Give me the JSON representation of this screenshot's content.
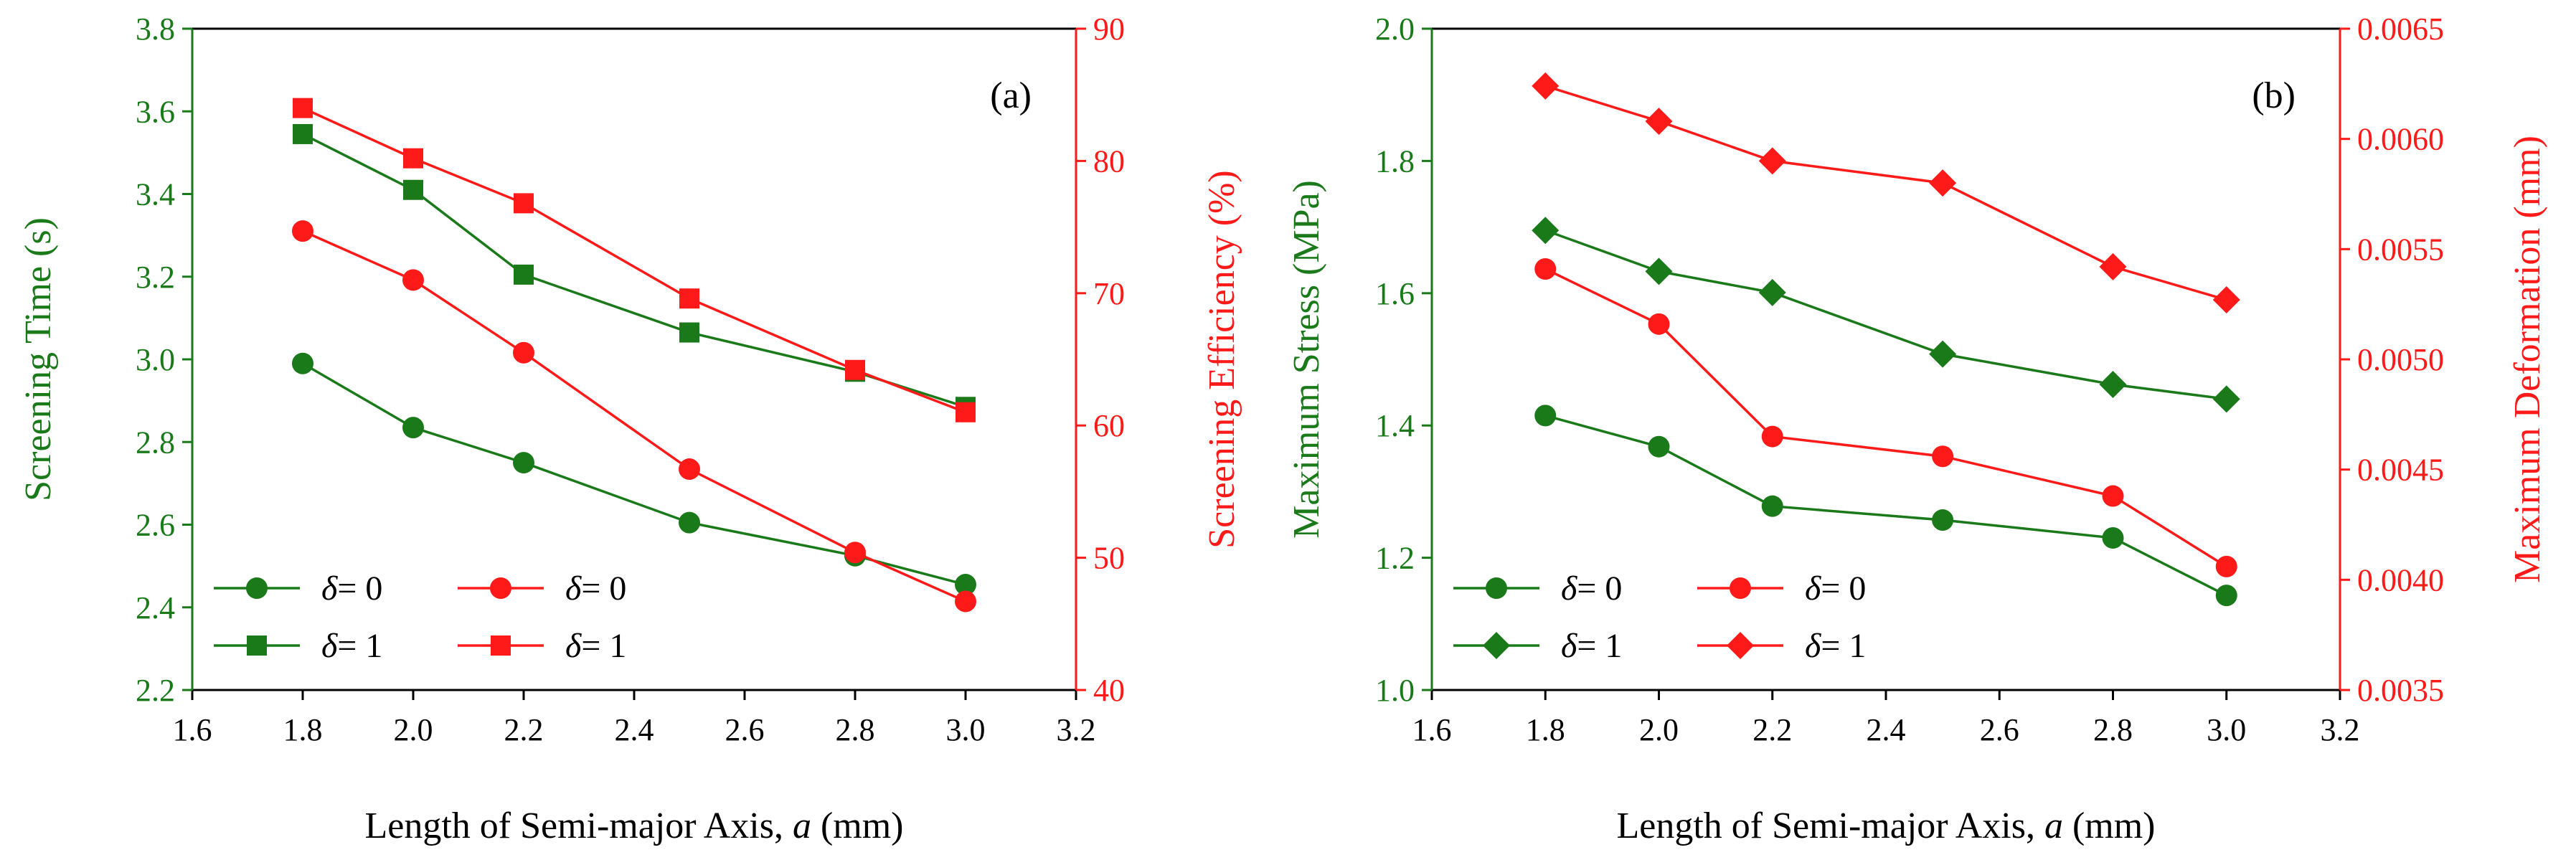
{
  "colors": {
    "green": "#1a7a1a",
    "red": "#ff1a1a",
    "axis": "#000000"
  },
  "chart_data": [
    {
      "type": "line",
      "panel_label": "(a)",
      "title": "",
      "xlabel_prefix": "Length of Semi-major Axis, ",
      "xlabel_var": "a",
      "xlabel_suffix": " (mm)",
      "xlim": [
        1.6,
        3.2
      ],
      "xticks": [
        "1.6",
        "1.8",
        "2.0",
        "2.2",
        "2.4",
        "2.6",
        "2.8",
        "3.0",
        "3.2"
      ],
      "ylabel_left": "Screening Time (s)",
      "ylim_left": [
        2.2,
        3.8
      ],
      "yticks_left": [
        "2.2",
        "2.4",
        "2.6",
        "2.8",
        "3.0",
        "3.2",
        "3.4",
        "3.6",
        "3.8"
      ],
      "ylabel_right": "Screening Efficiency (%)",
      "ylim_right": [
        40,
        90
      ],
      "yticks_right": [
        "40",
        "50",
        "60",
        "70",
        "80",
        "90"
      ],
      "x": [
        1.8,
        2.0,
        2.2,
        2.5,
        2.8,
        3.0
      ],
      "series": [
        {
          "name": "δ = 0",
          "delta_label": "δ",
          "delta_value": "= 0",
          "axis": "left",
          "color": "#1a7a1a",
          "marker": "circle",
          "values": [
            2.99,
            2.835,
            2.75,
            2.605,
            2.525,
            2.455
          ]
        },
        {
          "name": "δ = 1",
          "delta_label": "δ",
          "delta_value": "= 1",
          "axis": "left",
          "color": "#1a7a1a",
          "marker": "square",
          "values": [
            3.545,
            3.41,
            3.205,
            3.065,
            2.97,
            2.885
          ]
        },
        {
          "name": "δ = 0",
          "delta_label": "δ",
          "delta_value": "= 0",
          "axis": "right",
          "color": "#ff1a1a",
          "marker": "circle",
          "values": [
            74.7,
            71.0,
            65.5,
            56.7,
            50.4,
            46.7
          ]
        },
        {
          "name": "δ = 1",
          "delta_label": "δ",
          "delta_value": "= 1",
          "axis": "right",
          "color": "#ff1a1a",
          "marker": "square",
          "values": [
            84.0,
            80.2,
            76.8,
            69.6,
            64.2,
            61.0
          ]
        }
      ]
    },
    {
      "type": "line",
      "panel_label": "(b)",
      "title": "",
      "xlabel_prefix": "Length of Semi-major Axis, ",
      "xlabel_var": "a",
      "xlabel_suffix": " (mm)",
      "xlim": [
        1.6,
        3.2
      ],
      "xticks": [
        "1.6",
        "1.8",
        "2.0",
        "2.2",
        "2.4",
        "2.6",
        "2.8",
        "3.0",
        "3.2"
      ],
      "ylabel_left": "Maximum Stress (MPa)",
      "ylim_left": [
        1.0,
        2.0
      ],
      "yticks_left": [
        "1.0",
        "1.2",
        "1.4",
        "1.6",
        "1.8",
        "2.0"
      ],
      "ylabel_right": "Maximum Deformation (mm)",
      "ylim_right": [
        0.0035,
        0.0065
      ],
      "yticks_right": [
        "0.0035",
        "0.0040",
        "0.0045",
        "0.0050",
        "0.0055",
        "0.0060",
        "0.0065"
      ],
      "x": [
        1.8,
        2.0,
        2.2,
        2.5,
        2.8,
        3.0
      ],
      "series": [
        {
          "name": "δ = 0",
          "delta_label": "δ",
          "delta_value": "= 0",
          "axis": "left",
          "color": "#1a7a1a",
          "marker": "circle",
          "values": [
            1.415,
            1.368,
            1.278,
            1.257,
            1.23,
            1.143
          ]
        },
        {
          "name": "δ = 1",
          "delta_label": "δ",
          "delta_value": "= 1",
          "axis": "left",
          "color": "#1a7a1a",
          "marker": "diamond",
          "values": [
            1.695,
            1.633,
            1.601,
            1.508,
            1.462,
            1.44
          ]
        },
        {
          "name": "δ = 0",
          "delta_label": "δ",
          "delta_value": "= 0",
          "axis": "right",
          "color": "#ff1a1a",
          "marker": "circle",
          "values": [
            0.00541,
            0.00516,
            0.00465,
            0.00456,
            0.00438,
            0.00406
          ]
        },
        {
          "name": "δ = 1",
          "delta_label": "δ",
          "delta_value": "= 1",
          "axis": "right",
          "color": "#ff1a1a",
          "marker": "diamond",
          "values": [
            0.00624,
            0.00608,
            0.0059,
            0.0058,
            0.00542,
            0.00527
          ]
        }
      ]
    }
  ]
}
